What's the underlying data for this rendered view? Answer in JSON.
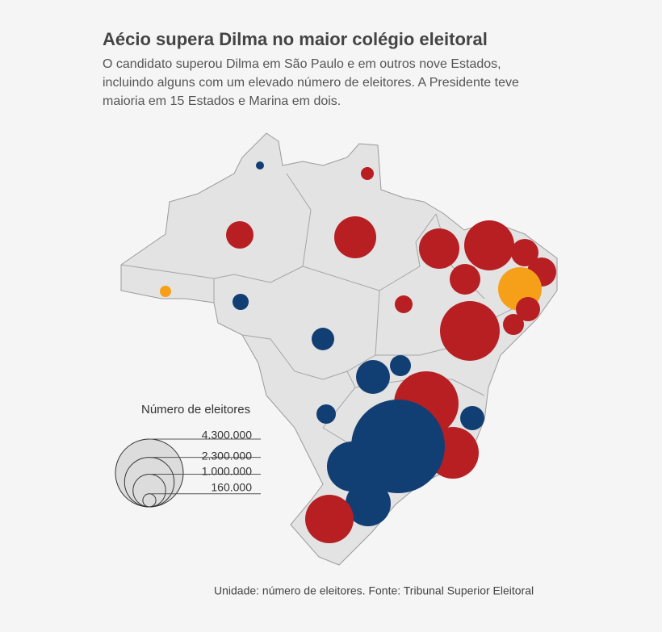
{
  "header": {
    "title": "Aécio supera Dilma no maior colégio eleitoral",
    "subtitle_lines": [
      "O candidato superou Dilma em São Paulo e em outros nove Estados,",
      "incluindo alguns com um elevado número de eleitores. A Presidente teve",
      "maioria em 15 Estados e Marina em dois."
    ]
  },
  "legend": {
    "title": "Número de eleitores",
    "entries": [
      {
        "value": 4300000,
        "label": "4.300.000"
      },
      {
        "value": 2300000,
        "label": "2.300.000"
      },
      {
        "value": 1000000,
        "label": "1.000.000"
      },
      {
        "value": 160000,
        "label": "160.000"
      }
    ]
  },
  "bubbles": [
    {
      "value": 61000,
      "color": "#123f73"
    },
    {
      "value": 156000,
      "color": "#b71f23"
    },
    {
      "value": 704000,
      "color": "#b71f23"
    },
    {
      "value": 1648000,
      "color": "#b71f23"
    },
    {
      "value": 119000,
      "color": "#f6a01a"
    },
    {
      "value": 244000,
      "color": "#123f73"
    },
    {
      "value": 478000,
      "color": "#123f73"
    },
    {
      "value": 295000,
      "color": "#b71f23"
    },
    {
      "value": 1524000,
      "color": "#b71f23"
    },
    {
      "value": 880000,
      "color": "#b71f23"
    },
    {
      "value": 2343000,
      "color": "#b71f23"
    },
    {
      "value": 704000,
      "color": "#b71f23"
    },
    {
      "value": 790000,
      "color": "#b71f23"
    },
    {
      "value": 1777000,
      "color": "#f6a01a"
    },
    {
      "value": 548000,
      "color": "#b71f23"
    },
    {
      "value": 412000,
      "color": "#b71f23"
    },
    {
      "value": 3337000,
      "color": "#b71f23"
    },
    {
      "value": 412000,
      "color": "#123f73"
    },
    {
      "value": 1075000,
      "color": "#123f73"
    },
    {
      "value": 351000,
      "color": "#123f73"
    },
    {
      "value": 3900000,
      "color": "#b71f23"
    },
    {
      "value": 548000,
      "color": "#123f73"
    },
    {
      "value": 2496000,
      "color": "#b71f23"
    },
    {
      "value": 8200000,
      "color": "#123f73"
    },
    {
      "value": 2343000,
      "color": "#123f73"
    },
    {
      "value": 1911000,
      "color": "#123f73"
    },
    {
      "value": 2194000,
      "color": "#b71f23"
    }
  ],
  "footer": {
    "source": "Unidade: número de eleitores. Fonte: Tribunal Superior Eleitoral"
  }
}
